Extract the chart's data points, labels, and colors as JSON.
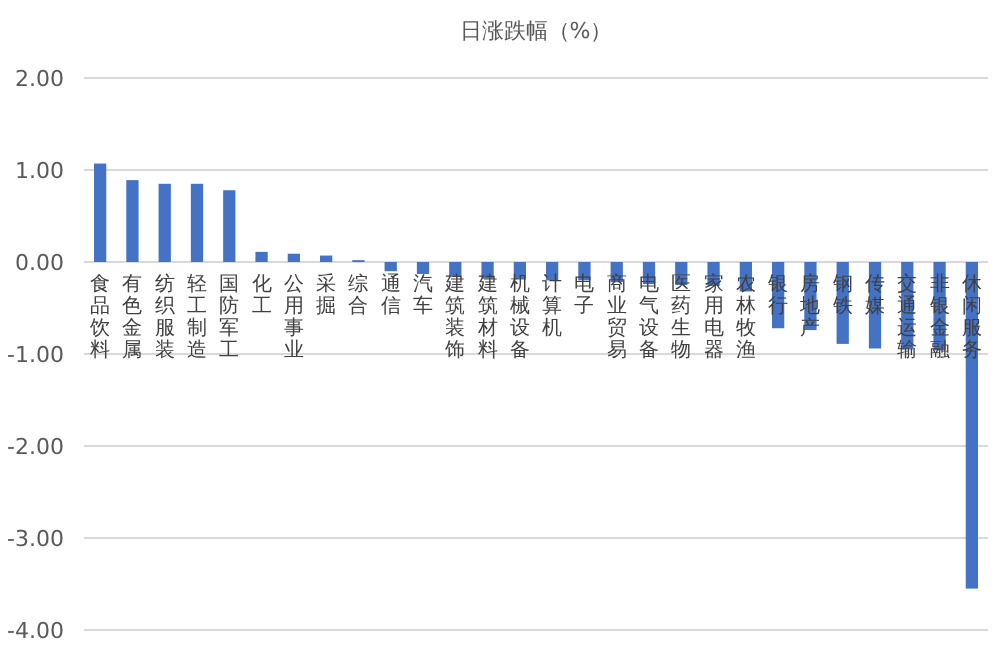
{
  "chart_data": {
    "type": "bar",
    "title": "日涨跌幅（%）",
    "categories": [
      "食品饮料",
      "有色金属",
      "纺织服装",
      "轻工制造",
      "国防军工",
      "化工",
      "公用事业",
      "采掘",
      "综合",
      "通信",
      "汽车",
      "建筑装饰",
      "建筑材料",
      "机械设备",
      "计算机",
      "电子",
      "商业贸易",
      "电气设备",
      "医药生物",
      "家用电器",
      "农林牧渔",
      "银行",
      "房地产",
      "钢铁",
      "传媒",
      "交通运输",
      "非银金融",
      "休闲服务"
    ],
    "values": [
      1.07,
      0.89,
      0.85,
      0.85,
      0.78,
      0.11,
      0.09,
      0.07,
      0.02,
      -0.1,
      -0.13,
      -0.16,
      -0.18,
      -0.19,
      -0.2,
      -0.2,
      -0.22,
      -0.24,
      -0.25,
      -0.26,
      -0.32,
      -0.72,
      -0.74,
      -0.89,
      -0.94,
      -0.95,
      -0.96,
      -3.55
    ],
    "color": "#4472c4",
    "ylim": [
      -4,
      2
    ],
    "yticks": [
      {
        "value": -4,
        "label": "-4.00"
      },
      {
        "value": -3,
        "label": "-3.00"
      },
      {
        "value": -2,
        "label": "-2.00"
      },
      {
        "value": -1,
        "label": "-1.00"
      },
      {
        "value": 0,
        "label": "0.00"
      },
      {
        "value": 1,
        "label": "1.00"
      },
      {
        "value": 2,
        "label": "2.00"
      }
    ],
    "grid": "y"
  }
}
